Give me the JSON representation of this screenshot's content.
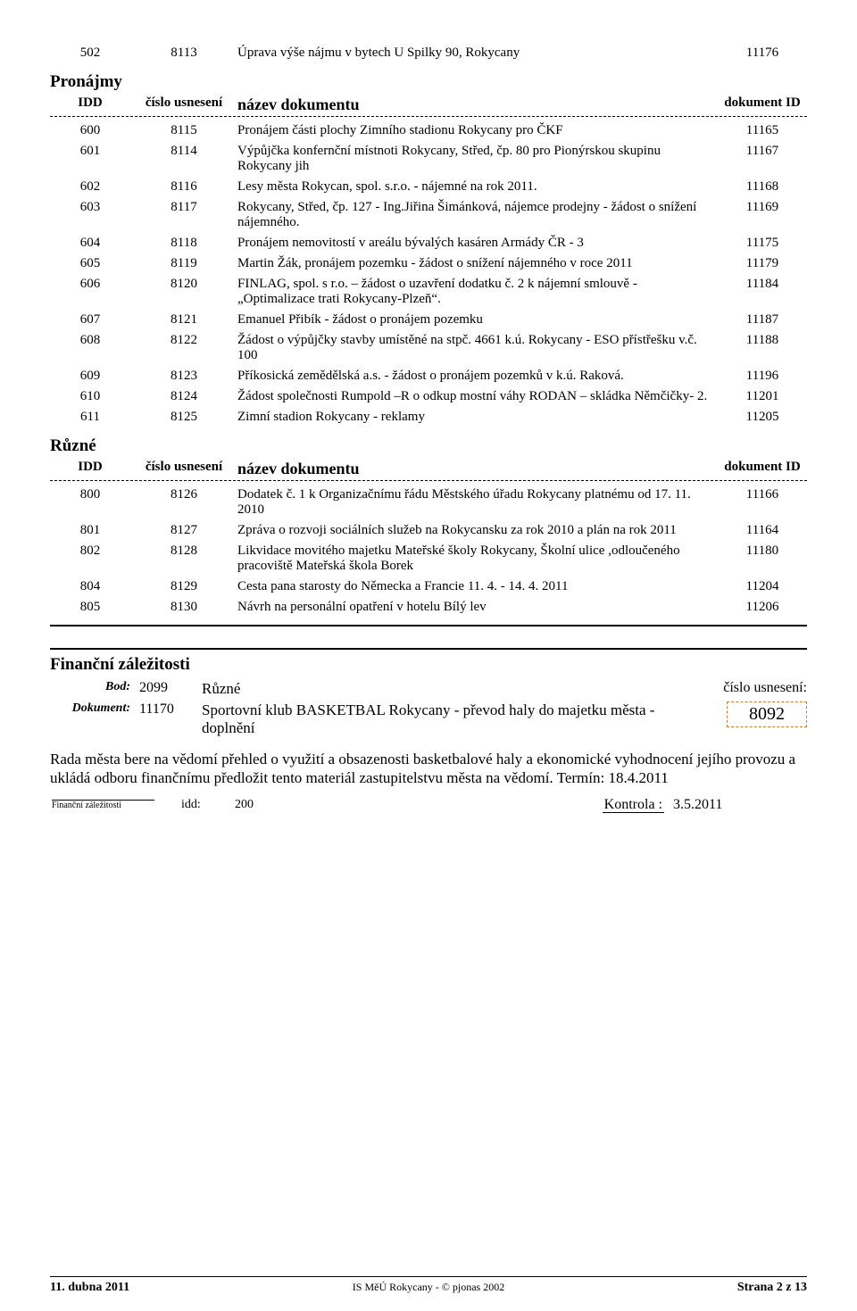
{
  "top_row": {
    "idd": "502",
    "cislo": "8113",
    "name": "Úprava výše nájmu v bytech U Spilky 90, Rokycany",
    "docid": "11176"
  },
  "sections": [
    {
      "title": "Pronájmy",
      "headers": {
        "idd": "IDD",
        "cislo": "číslo usnesení",
        "name": "název dokumentu",
        "docid": "dokument ID"
      },
      "rows": [
        {
          "idd": "600",
          "cislo": "8115",
          "name": "Pronájem části plochy Zimního stadionu Rokycany pro ČKF",
          "docid": "11165"
        },
        {
          "idd": "601",
          "cislo": "8114",
          "name": "Výpůjčka konfernční místnoti Rokycany, Střed, čp. 80 pro Pionýrskou skupinu Rokycany jih",
          "docid": "11167"
        },
        {
          "idd": "602",
          "cislo": "8116",
          "name": "Lesy města Rokycan, spol. s.r.o. - nájemné na rok 2011.",
          "docid": "11168"
        },
        {
          "idd": "603",
          "cislo": "8117",
          "name": "Rokycany, Střed, čp. 127 - Ing.Jiřina Šimánková, nájemce prodejny - žádost o snížení nájemného.",
          "docid": "11169"
        },
        {
          "idd": "604",
          "cislo": "8118",
          "name": "Pronájem nemovitostí v areálu bývalých kasáren Armády ČR - 3",
          "docid": "11175"
        },
        {
          "idd": "605",
          "cislo": "8119",
          "name": "Martin Žák, pronájem pozemku - žádost o snížení nájemného v roce 2011",
          "docid": "11179"
        },
        {
          "idd": "606",
          "cislo": "8120",
          "name": "FINLAG, spol. s r.o. – žádost o uzavření dodatku č. 2 k nájemní smlouvě - „Optimalizace trati Rokycany-Plzeň“.",
          "docid": "11184"
        },
        {
          "idd": "607",
          "cislo": "8121",
          "name": "Emanuel Přibík - žádost o pronájem pozemku",
          "docid": "11187"
        },
        {
          "idd": "608",
          "cislo": "8122",
          "name": "Žádost o výpůjčky stavby umístěné na stpč. 4661 k.ú. Rokycany - ESO přístřešku v.č. 100",
          "docid": "11188"
        },
        {
          "idd": "609",
          "cislo": "8123",
          "name": "Příkosická zemědělská a.s. - žádost o pronájem pozemků v k.ú. Raková.",
          "docid": "11196"
        },
        {
          "idd": "610",
          "cislo": "8124",
          "name": "Žádost společnosti Rumpold –R o odkup mostní váhy RODAN – skládka Němčičky- 2.",
          "docid": "11201"
        },
        {
          "idd": "611",
          "cislo": "8125",
          "name": "Zimní stadion Rokycany - reklamy",
          "docid": "11205"
        }
      ]
    },
    {
      "title": "Různé",
      "headers": {
        "idd": "IDD",
        "cislo": "číslo usnesení",
        "name": "název dokumentu",
        "docid": "dokument ID"
      },
      "rows": [
        {
          "idd": "800",
          "cislo": "8126",
          "name": "Dodatek č. 1 k Organizačnímu řádu Městského úřadu Rokycany platnému od 17. 11. 2010",
          "docid": "11166"
        },
        {
          "idd": "801",
          "cislo": "8127",
          "name": "Zpráva o rozvoji sociálních služeb na Rokycansku za rok 2010 a plán na rok 2011",
          "docid": "11164"
        },
        {
          "idd": "802",
          "cislo": "8128",
          "name": "Likvidace movitého majetku Mateřské školy Rokycany, Školní ulice ,odloučeného pracoviště Mateřská škola Borek",
          "docid": "11180"
        },
        {
          "idd": "804",
          "cislo": "8129",
          "name": "Cesta pana starosty do Německa a Francie 11. 4. - 14. 4. 2011",
          "docid": "11204"
        },
        {
          "idd": "805",
          "cislo": "8130",
          "name": "Návrh na personální opatření v hotelu Bílý lev",
          "docid": "11206"
        }
      ]
    }
  ],
  "fin": {
    "heading": "Finanční záležitosti",
    "bod_label": "Bod:",
    "bod_num": "2099",
    "bod_text": "Různé",
    "cislo_label": "číslo usnesení:",
    "dok_label": "Dokument:",
    "dok_num": "11170",
    "dok_text": "Sportovní klub BASKETBAL Rokycany - převod haly do majetku města - doplnění",
    "dok_id": "8092",
    "body": "Rada města bere na vědomí přehled o využití a obsazenosti basketbalové haly a ekonomické vyhodnocení jejího provozu a ukládá odboru finančnímu předložit tento materiál zastupitelstvu města na vědomí. Termín: 18.4.2011",
    "small_label": "Finanční záležitosti",
    "idd_label": "idd:",
    "idd_val": "200",
    "kontrola_label": "Kontrola :",
    "kontrola_val": "3.5.2011"
  },
  "footer": {
    "left": "11. dubna 2011",
    "center": "IS MěÚ Rokycany - © pjonas 2002",
    "right": "Strana 2 z 13"
  },
  "colors": {
    "text": "#000000",
    "background": "#ffffff",
    "dotted_border": "#c77d2e"
  }
}
